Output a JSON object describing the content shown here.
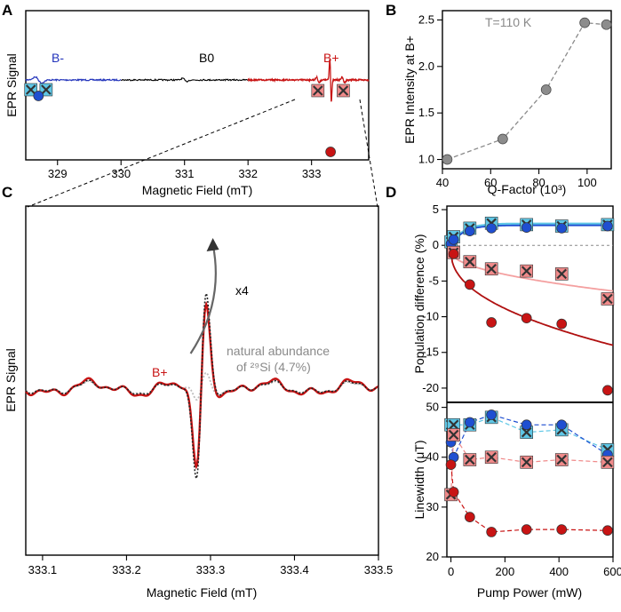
{
  "colors": {
    "red": "#c81414",
    "dark_red": "#b01010",
    "blue": "#2233bb",
    "marker_blue": "#1f4fd1",
    "cyan": "#5fc7e6",
    "pink": "#f08a8a",
    "light_red": "#f4a0a0",
    "grey": "#8a8a8a",
    "light_grey": "#bdbdbd",
    "black": "#000000"
  },
  "icons": {
    "cross_marker": "x-square-marker",
    "dot_marker": "circle-marker"
  },
  "chart_data": [
    {
      "panel": "A",
      "type": "line",
      "xlabel": "Magnetic Field (mT)",
      "ylabel": "EPR Signal",
      "xlim": [
        328.5,
        333.9
      ],
      "xticks": [
        329,
        330,
        331,
        332,
        333
      ],
      "labels": {
        "b_minus": "B-",
        "b_zero": "B0",
        "b_plus": "B+"
      },
      "b_minus_center": 328.7,
      "b_zero_center": 331.0,
      "b_plus_center": 333.3,
      "marker_positions": {
        "b_minus_cross": [
          328.58,
          328.82
        ],
        "b_minus_dot": 328.7,
        "b_plus_cross": [
          333.1,
          333.5
        ],
        "b_plus_dot": 333.3
      }
    },
    {
      "panel": "B",
      "type": "scatter",
      "xlabel": "Q-Factor (10³)",
      "ylabel": "EPR Intensity at B+",
      "annotation": "T=110 K",
      "xlim": [
        40,
        110
      ],
      "ylim": [
        0.9,
        2.6
      ],
      "xticks": [
        40,
        60,
        80,
        100
      ],
      "yticks": [
        1.0,
        1.5,
        2.0,
        2.5
      ],
      "x": [
        42,
        65,
        83,
        99,
        108
      ],
      "y": [
        1.0,
        1.22,
        1.75,
        2.47,
        2.45
      ]
    },
    {
      "panel": "C",
      "type": "line",
      "xlabel": "Magnetic Field (mT)",
      "ylabel": "EPR Signal",
      "xlim": [
        333.08,
        333.5
      ],
      "xticks": [
        333.1,
        333.2,
        333.3,
        333.4,
        333.5
      ],
      "tick_labels": [
        "333.1",
        "333.2",
        "333.3",
        "333.4",
        "333.5"
      ],
      "annotations": {
        "scale": "x4",
        "natural_line1": "natural abundance",
        "natural_line2": "of ²⁹Si (4.7%)",
        "b_plus": "B+"
      },
      "series": [
        {
          "name": "B+ measured",
          "color": "#c81414",
          "style": "solid"
        },
        {
          "name": "natural abundance 29Si",
          "color": "#bdbdbd",
          "style": "dotted"
        },
        {
          "name": "natural abundance x4",
          "color": "#222222",
          "style": "dotted"
        }
      ]
    },
    {
      "panel": "D-top",
      "type": "scatter",
      "ylabel": "Population difference (%)",
      "xlim": [
        -15,
        600
      ],
      "ylim": [
        -22,
        5.5
      ],
      "yticks": [
        5,
        0,
        -5,
        -10,
        -15,
        -20
      ],
      "series": [
        {
          "name": "B- cross",
          "marker": "cross",
          "color": "#5fc7e6",
          "x": [
            0,
            10,
            70,
            150,
            280,
            410,
            580
          ],
          "y": [
            0.5,
            1.2,
            2.4,
            3.1,
            2.9,
            2.7,
            2.9
          ]
        },
        {
          "name": "B- dot",
          "marker": "dot",
          "color": "#1f4fd1",
          "x": [
            0,
            10,
            70,
            150,
            280,
            410,
            580
          ],
          "y": [
            0.2,
            0.8,
            2.0,
            2.4,
            2.5,
            2.4,
            2.7
          ]
        },
        {
          "name": "B+ cross",
          "marker": "cross",
          "color": "#f08a8a",
          "x": [
            10,
            70,
            150,
            280,
            410,
            580
          ],
          "y": [
            -1.0,
            -2.3,
            -3.3,
            -3.6,
            -4.0,
            -7.5
          ]
        },
        {
          "name": "B+ dot",
          "marker": "dot",
          "color": "#c81414",
          "x": [
            10,
            70,
            150,
            280,
            410,
            580
          ],
          "y": [
            -1.2,
            -5.5,
            -10.8,
            -10.2,
            -11.0,
            -20.3
          ]
        }
      ]
    },
    {
      "panel": "D-bottom",
      "type": "scatter",
      "xlabel": "Pump Power (mW)",
      "ylabel": "Linewidth (μT)",
      "xlim": [
        -15,
        600
      ],
      "ylim": [
        20,
        51
      ],
      "xticks": [
        0,
        200,
        400,
        600
      ],
      "yticks": [
        20,
        30,
        40,
        50
      ],
      "series": [
        {
          "name": "B- cross",
          "marker": "cross",
          "color": "#5fc7e6",
          "x": [
            0,
            10,
            70,
            150,
            280,
            410,
            580
          ],
          "y": [
            46.5,
            46.5,
            46.5,
            48.0,
            45.0,
            45.5,
            41.5
          ]
        },
        {
          "name": "B- dot",
          "marker": "dot",
          "color": "#1f4fd1",
          "x": [
            0,
            10,
            70,
            150,
            280,
            410,
            580
          ],
          "y": [
            43.0,
            40.0,
            47.0,
            48.5,
            46.5,
            46.5,
            40.5
          ]
        },
        {
          "name": "B+ cross",
          "marker": "cross",
          "color": "#f08a8a",
          "x": [
            0,
            10,
            70,
            150,
            280,
            410,
            580
          ],
          "y": [
            32.5,
            44.5,
            39.5,
            40.0,
            39.0,
            39.5,
            39.0
          ]
        },
        {
          "name": "B+ dot",
          "marker": "dot",
          "color": "#c81414",
          "x": [
            0,
            10,
            70,
            150,
            280,
            410,
            580
          ],
          "y": [
            38.5,
            33.0,
            28.0,
            25.0,
            25.5,
            25.5,
            25.3
          ]
        }
      ]
    }
  ]
}
